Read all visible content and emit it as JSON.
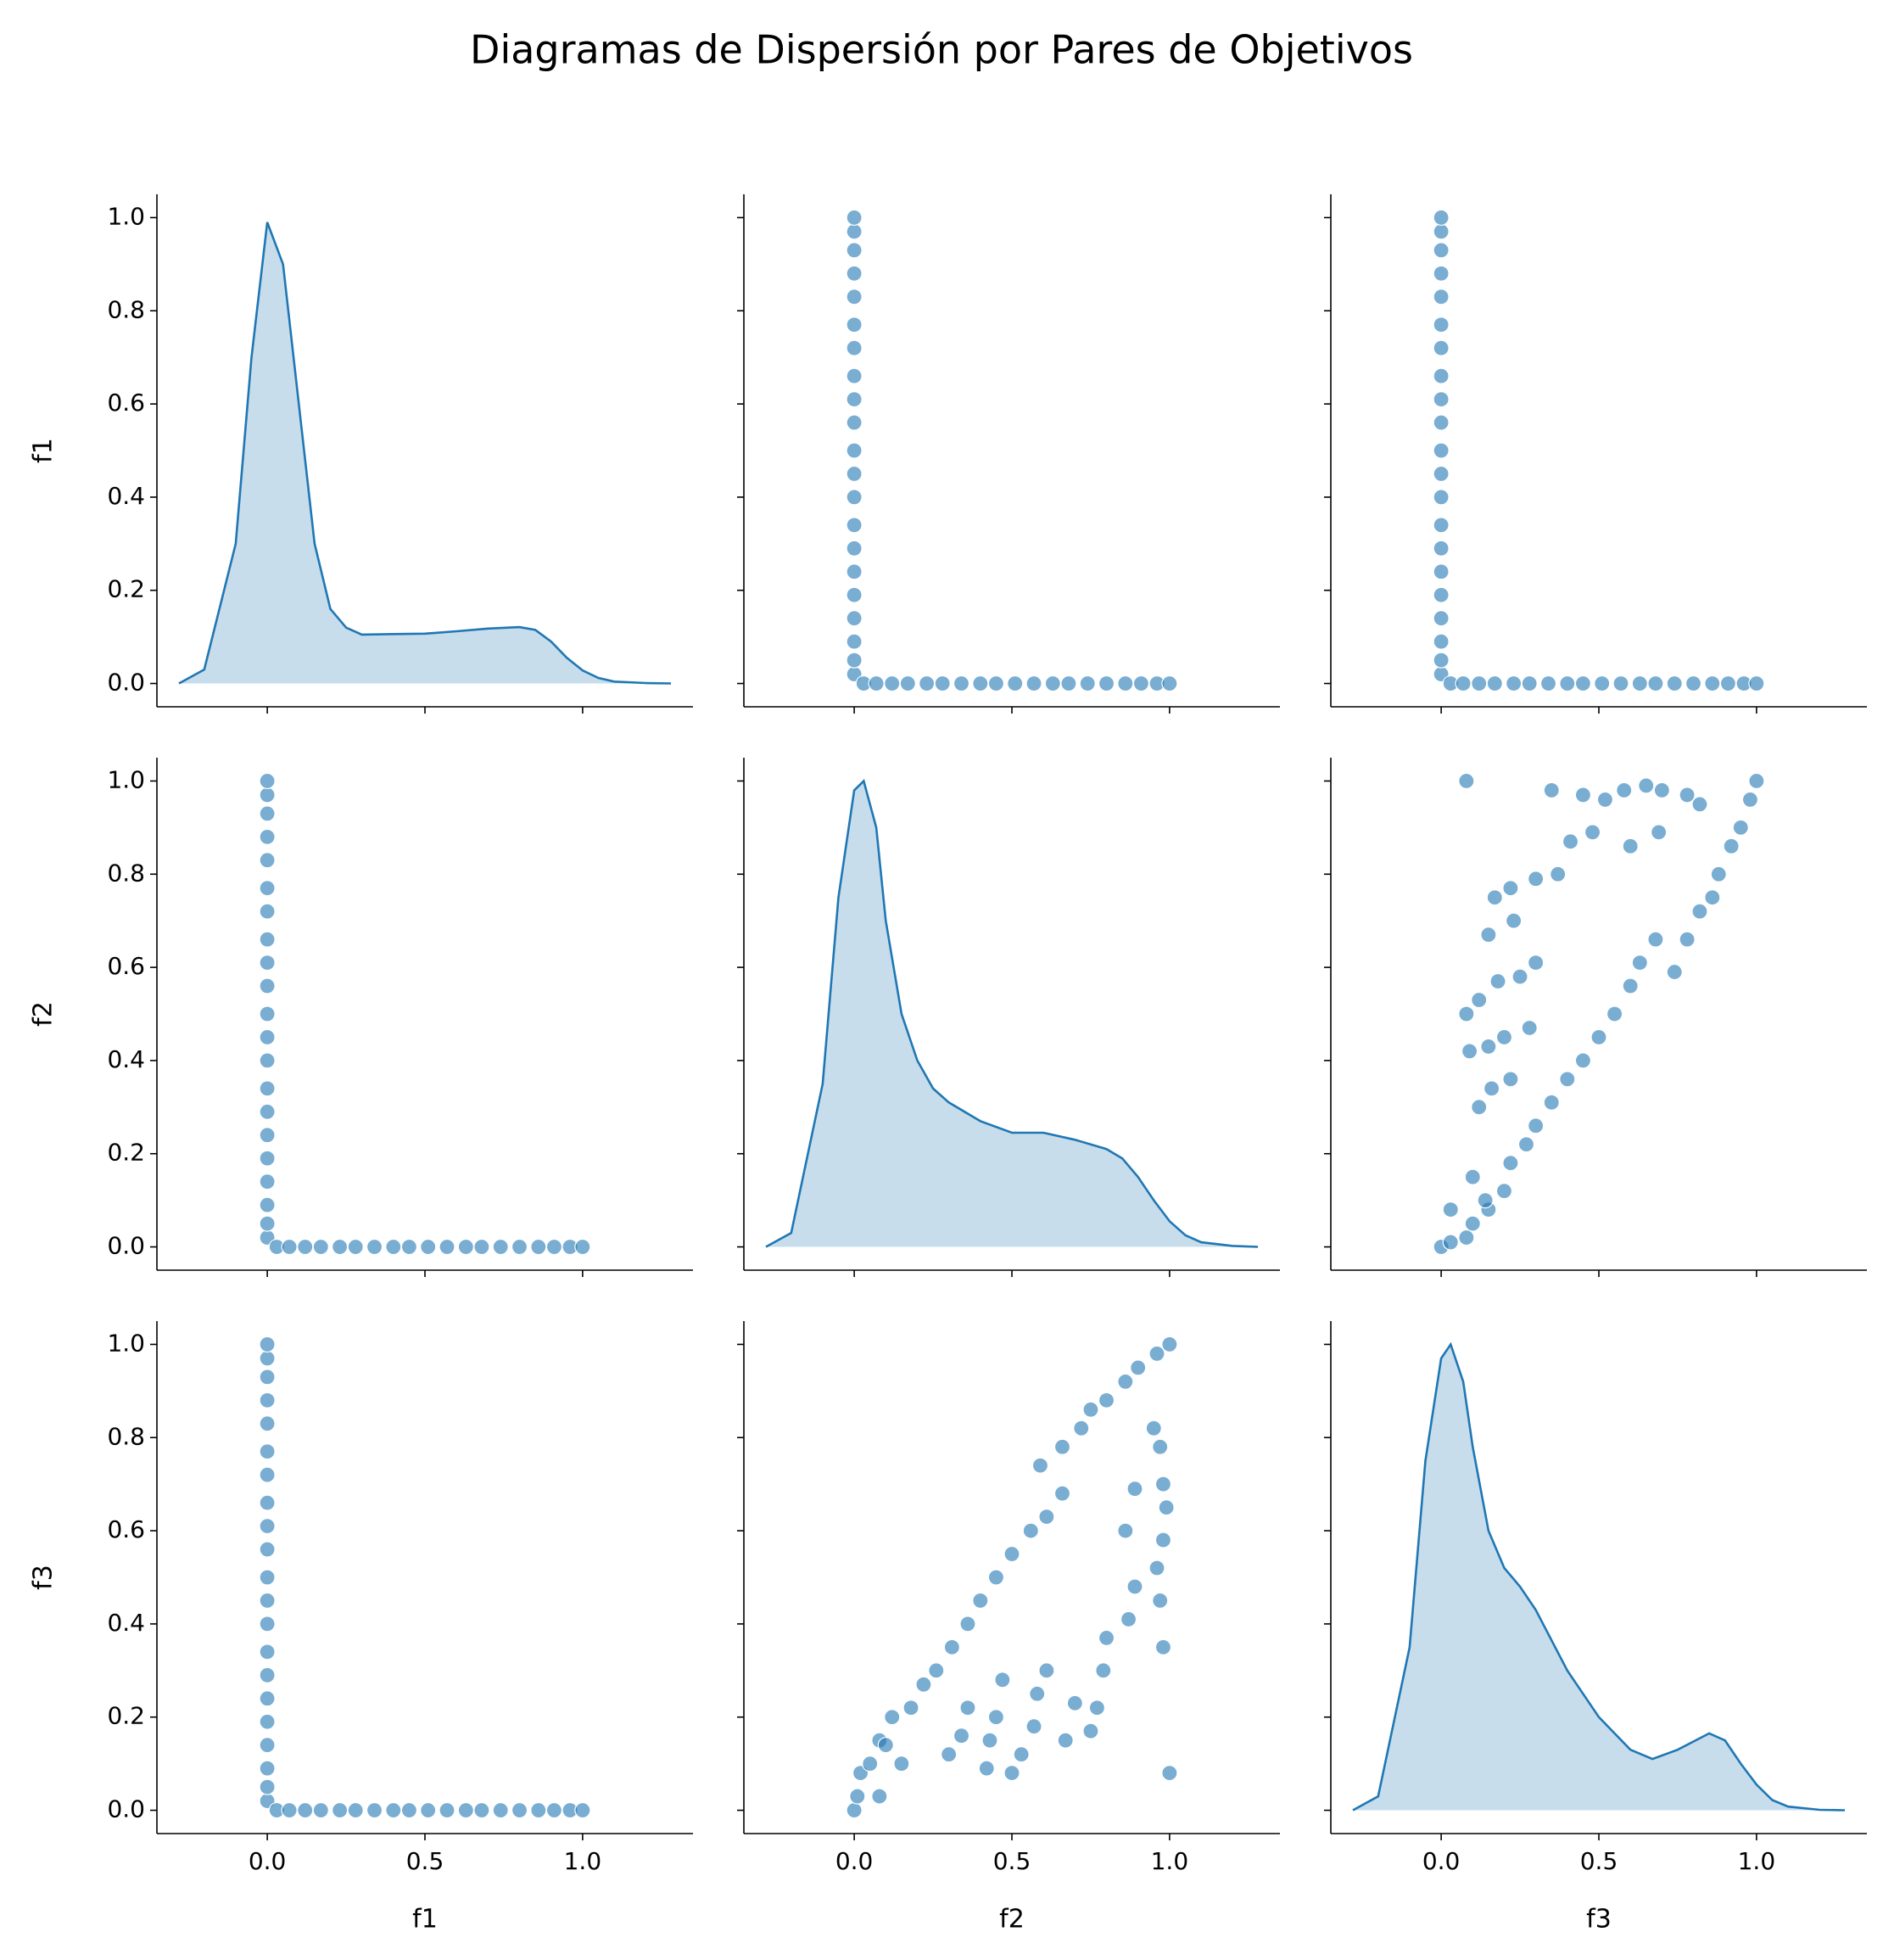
{
  "title": "Diagramas de Dispersión por Pares de Objetivos",
  "chart_data": [
    {
      "type": "kde",
      "color": "#1f77b4",
      "ylabel": "f1",
      "x": [
        -0.28,
        -0.2,
        -0.1,
        -0.05,
        0,
        0.05,
        0.1,
        0.15,
        0.2,
        0.25,
        0.3,
        0.4,
        0.5,
        0.6,
        0.7,
        0.8,
        0.85,
        0.9,
        0.95,
        1,
        1.05,
        1.1,
        1.2,
        1.28
      ],
      "values": [
        0,
        0.03,
        0.3,
        0.7,
        0.99,
        0.9,
        0.6,
        0.3,
        0.16,
        0.12,
        0.105,
        0.106,
        0.107,
        0.112,
        0.118,
        0.121,
        0.115,
        0.09,
        0.055,
        0.028,
        0.012,
        0.004,
        0.001,
        0
      ],
      "xlim": [
        -0.35,
        1.35
      ],
      "ylim": [
        -0.05,
        1.05
      ],
      "yticks": [
        {
          "value": 0,
          "label": "0.0"
        },
        0.2,
        0.4,
        0.6,
        0.8,
        {
          "value": 1,
          "label": "1.0"
        }
      ]
    },
    {
      "type": "scatter",
      "color": "#1f77b4",
      "x": [
        0,
        0,
        0,
        0,
        0,
        0,
        0,
        0,
        0,
        0,
        0,
        0,
        0,
        0,
        0,
        0,
        0,
        0,
        0,
        0,
        0,
        0.03,
        0.07,
        0.12,
        0.17,
        0.23,
        0.28,
        0.34,
        0.4,
        0.45,
        0.51,
        0.57,
        0.63,
        0.68,
        0.74,
        0.8,
        0.86,
        0.91,
        0.96,
        1
      ],
      "values": [
        0.02,
        0.05,
        0.09,
        0.14,
        0.19,
        0.24,
        0.29,
        0.34,
        0.4,
        0.45,
        0.5,
        0.56,
        0.61,
        0.66,
        0.72,
        0.77,
        0.83,
        0.88,
        0.93,
        0.97,
        1,
        0,
        0,
        0,
        0,
        0,
        0,
        0,
        0,
        0,
        0,
        0,
        0,
        0,
        0,
        0,
        0,
        0,
        0,
        0
      ],
      "xlim": [
        -0.35,
        1.35
      ],
      "ylim": [
        -0.05,
        1.05
      ]
    },
    {
      "type": "scatter",
      "color": "#1f77b4",
      "x": [
        0,
        0,
        0,
        0,
        0,
        0,
        0,
        0,
        0,
        0,
        0,
        0,
        0,
        0,
        0,
        0,
        0,
        0,
        0,
        0,
        0,
        0.03,
        0.07,
        0.12,
        0.17,
        0.23,
        0.28,
        0.34,
        0.4,
        0.45,
        0.51,
        0.57,
        0.63,
        0.68,
        0.74,
        0.8,
        0.86,
        0.91,
        0.96,
        1
      ],
      "values": [
        0.02,
        0.05,
        0.09,
        0.14,
        0.19,
        0.24,
        0.29,
        0.34,
        0.4,
        0.45,
        0.5,
        0.56,
        0.61,
        0.66,
        0.72,
        0.77,
        0.83,
        0.88,
        0.93,
        0.97,
        1,
        0,
        0,
        0,
        0,
        0,
        0,
        0,
        0,
        0,
        0,
        0,
        0,
        0,
        0,
        0,
        0,
        0,
        0,
        0
      ],
      "xlim": [
        -0.35,
        1.35
      ],
      "ylim": [
        -0.05,
        1.05
      ]
    },
    {
      "type": "scatter",
      "color": "#1f77b4",
      "ylabel": "f2",
      "x": [
        0,
        0,
        0,
        0,
        0,
        0,
        0,
        0,
        0,
        0,
        0,
        0,
        0,
        0,
        0,
        0,
        0,
        0,
        0,
        0,
        0,
        0.03,
        0.07,
        0.12,
        0.17,
        0.23,
        0.28,
        0.34,
        0.4,
        0.45,
        0.51,
        0.57,
        0.63,
        0.68,
        0.74,
        0.8,
        0.86,
        0.91,
        0.96,
        1
      ],
      "values": [
        0.02,
        0.05,
        0.09,
        0.14,
        0.19,
        0.24,
        0.29,
        0.34,
        0.4,
        0.45,
        0.5,
        0.56,
        0.61,
        0.66,
        0.72,
        0.77,
        0.83,
        0.88,
        0.93,
        0.97,
        1,
        0,
        0,
        0,
        0,
        0,
        0,
        0,
        0,
        0,
        0,
        0,
        0,
        0,
        0,
        0,
        0,
        0,
        0,
        0
      ],
      "xlim": [
        -0.35,
        1.35
      ],
      "ylim": [
        -0.05,
        1.05
      ],
      "yticks": [
        {
          "value": 0,
          "label": "0.0"
        },
        0.2,
        0.4,
        0.6,
        0.8,
        {
          "value": 1,
          "label": "1.0"
        }
      ]
    },
    {
      "type": "kde",
      "color": "#1f77b4",
      "x": [
        -0.28,
        -0.2,
        -0.1,
        -0.05,
        0,
        0.03,
        0.07,
        0.1,
        0.15,
        0.2,
        0.25,
        0.3,
        0.4,
        0.5,
        0.6,
        0.7,
        0.8,
        0.85,
        0.9,
        0.95,
        1,
        1.05,
        1.1,
        1.2,
        1.28
      ],
      "values": [
        0,
        0.03,
        0.35,
        0.75,
        0.98,
        1,
        0.9,
        0.7,
        0.5,
        0.4,
        0.34,
        0.31,
        0.27,
        0.245,
        0.245,
        0.23,
        0.21,
        0.19,
        0.15,
        0.1,
        0.055,
        0.025,
        0.01,
        0.002,
        0
      ],
      "xlim": [
        -0.35,
        1.35
      ],
      "ylim": [
        -0.05,
        1.05
      ]
    },
    {
      "type": "scatter",
      "color": "#1f77b4",
      "x": [
        0,
        0.03,
        0.08,
        0.1,
        0.15,
        0.2,
        0.22,
        0.27,
        0.3,
        0.35,
        0.4,
        0.45,
        0.5,
        0.55,
        0.6,
        0.63,
        0.68,
        0.74,
        0.78,
        0.82,
        0.86,
        0.88,
        0.92,
        0.95,
        0.98,
        1,
        0.08,
        0.12,
        0.18,
        0.25,
        0.3,
        0.09,
        0.15,
        0.2,
        0.28,
        0.12,
        0.16,
        0.22,
        0.15,
        0.23,
        0.17,
        0.22,
        0.3,
        0.37,
        0.41,
        0.48,
        0.52,
        0.58,
        0.65,
        0.7,
        0.78,
        0.82,
        0.35,
        0.45,
        0.6,
        0.69,
        0.08,
        0.03,
        0.1,
        0.14
      ],
      "values": [
        0,
        0.01,
        0.02,
        0.05,
        0.08,
        0.12,
        0.18,
        0.22,
        0.26,
        0.31,
        0.36,
        0.4,
        0.45,
        0.5,
        0.56,
        0.61,
        0.66,
        0.59,
        0.66,
        0.72,
        0.75,
        0.8,
        0.86,
        0.9,
        0.96,
        1,
        0.5,
        0.53,
        0.57,
        0.58,
        0.61,
        0.42,
        0.43,
        0.45,
        0.47,
        0.3,
        0.34,
        0.36,
        0.67,
        0.7,
        0.75,
        0.77,
        0.79,
        0.8,
        0.87,
        0.89,
        0.96,
        0.98,
        0.99,
        0.98,
        0.97,
        0.95,
        0.98,
        0.97,
        0.86,
        0.89,
        1,
        0.08,
        0.15,
        0.1
      ],
      "xlim": [
        -0.35,
        1.35
      ],
      "ylim": [
        -0.05,
        1.05
      ]
    },
    {
      "type": "scatter",
      "color": "#1f77b4",
      "ylabel": "f3",
      "xlabel": "f1",
      "x": [
        0,
        0,
        0,
        0,
        0,
        0,
        0,
        0,
        0,
        0,
        0,
        0,
        0,
        0,
        0,
        0,
        0,
        0,
        0,
        0,
        0,
        0.03,
        0.07,
        0.12,
        0.17,
        0.23,
        0.28,
        0.34,
        0.4,
        0.45,
        0.51,
        0.57,
        0.63,
        0.68,
        0.74,
        0.8,
        0.86,
        0.91,
        0.96,
        1
      ],
      "values": [
        0.02,
        0.05,
        0.09,
        0.14,
        0.19,
        0.24,
        0.29,
        0.34,
        0.4,
        0.45,
        0.5,
        0.56,
        0.61,
        0.66,
        0.72,
        0.77,
        0.83,
        0.88,
        0.93,
        0.97,
        1,
        0,
        0,
        0,
        0,
        0,
        0,
        0,
        0,
        0,
        0,
        0,
        0,
        0,
        0,
        0,
        0,
        0,
        0,
        0
      ],
      "xlim": [
        -0.35,
        1.35
      ],
      "ylim": [
        -0.05,
        1.05
      ],
      "yticks": [
        {
          "value": 0,
          "label": "0.0"
        },
        0.2,
        0.4,
        0.6,
        0.8,
        {
          "value": 1,
          "label": "1.0"
        }
      ],
      "xticks": [
        {
          "value": 0,
          "label": "0.0"
        },
        0.5,
        {
          "value": 1,
          "label": "1.0"
        }
      ]
    },
    {
      "type": "scatter",
      "color": "#1f77b4",
      "xlabel": "f2",
      "x": [
        0,
        0.01,
        0.02,
        0.05,
        0.08,
        0.12,
        0.18,
        0.22,
        0.26,
        0.31,
        0.36,
        0.4,
        0.45,
        0.5,
        0.56,
        0.61,
        0.66,
        0.59,
        0.66,
        0.72,
        0.75,
        0.8,
        0.86,
        0.9,
        0.96,
        1,
        0.5,
        0.53,
        0.57,
        0.58,
        0.61,
        0.42,
        0.43,
        0.45,
        0.47,
        0.3,
        0.34,
        0.36,
        0.67,
        0.7,
        0.75,
        0.77,
        0.79,
        0.8,
        0.87,
        0.89,
        0.96,
        0.98,
        0.99,
        0.98,
        0.97,
        0.95,
        0.98,
        0.97,
        0.86,
        0.89,
        1,
        0.08,
        0.15,
        0.1
      ],
      "values": [
        0,
        0.03,
        0.08,
        0.1,
        0.15,
        0.2,
        0.22,
        0.27,
        0.3,
        0.35,
        0.4,
        0.45,
        0.5,
        0.55,
        0.6,
        0.63,
        0.68,
        0.74,
        0.78,
        0.82,
        0.86,
        0.88,
        0.92,
        0.95,
        0.98,
        1,
        0.08,
        0.12,
        0.18,
        0.25,
        0.3,
        0.09,
        0.15,
        0.2,
        0.28,
        0.12,
        0.16,
        0.22,
        0.15,
        0.23,
        0.17,
        0.22,
        0.3,
        0.37,
        0.41,
        0.48,
        0.52,
        0.58,
        0.65,
        0.7,
        0.78,
        0.82,
        0.35,
        0.45,
        0.6,
        0.69,
        0.08,
        0.03,
        0.1,
        0.14
      ],
      "xlim": [
        -0.35,
        1.35
      ],
      "ylim": [
        -0.05,
        1.05
      ],
      "xticks": [
        {
          "value": 0,
          "label": "0.0"
        },
        0.5,
        {
          "value": 1,
          "label": "1.0"
        }
      ]
    },
    {
      "type": "kde",
      "color": "#1f77b4",
      "xlabel": "f3",
      "x": [
        -0.28,
        -0.2,
        -0.1,
        -0.05,
        0,
        0.03,
        0.07,
        0.1,
        0.15,
        0.2,
        0.25,
        0.3,
        0.4,
        0.5,
        0.6,
        0.67,
        0.75,
        0.85,
        0.9,
        0.95,
        1,
        1.05,
        1.1,
        1.2,
        1.28
      ],
      "values": [
        0,
        0.03,
        0.35,
        0.75,
        0.97,
        1,
        0.92,
        0.78,
        0.6,
        0.52,
        0.48,
        0.43,
        0.3,
        0.2,
        0.13,
        0.11,
        0.13,
        0.165,
        0.15,
        0.1,
        0.055,
        0.022,
        0.008,
        0.001,
        0
      ],
      "xlim": [
        -0.35,
        1.35
      ],
      "ylim": [
        -0.05,
        1.05
      ],
      "xticks": [
        {
          "value": 0,
          "label": "0.0"
        },
        0.5,
        {
          "value": 1,
          "label": "1.0"
        }
      ]
    }
  ]
}
